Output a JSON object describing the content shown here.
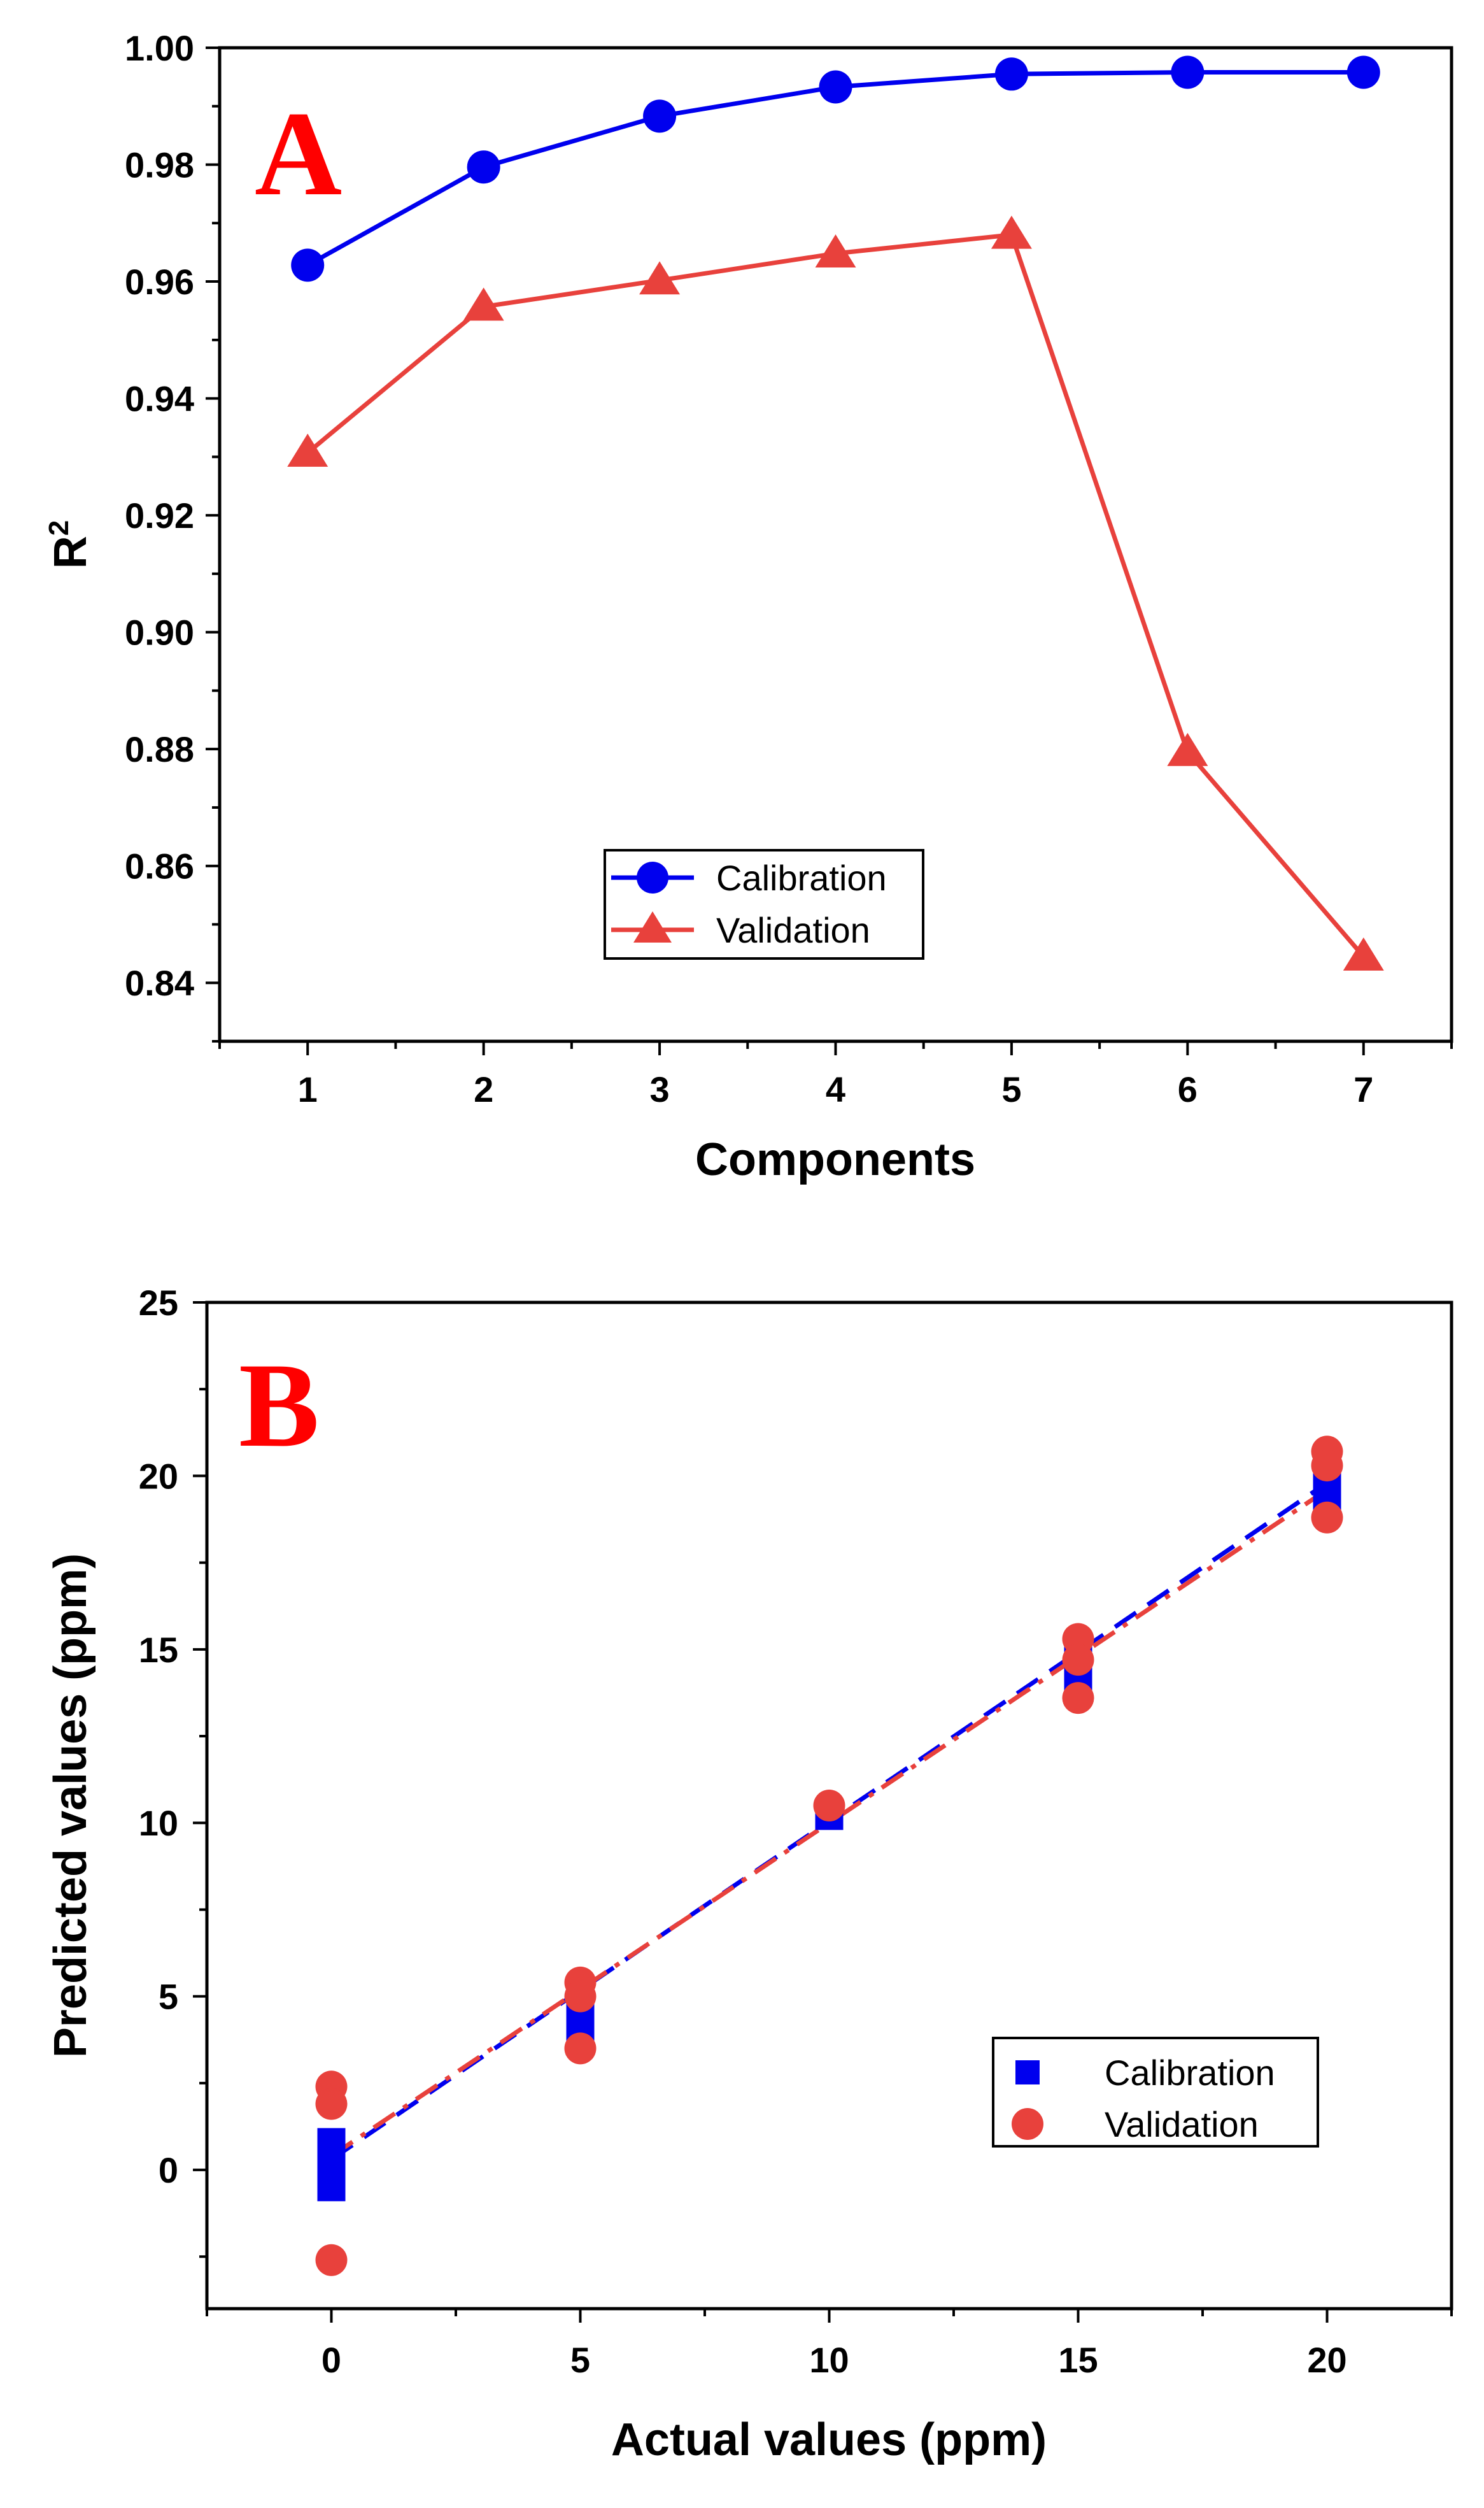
{
  "chart_data": [
    {
      "panel": "A",
      "type": "line",
      "title": "",
      "xlabel": "Components",
      "ylabel": "R",
      "ylabel_superscript": "2",
      "xlim": [
        0.5,
        7.5
      ],
      "ylim": [
        0.83,
        1.0
      ],
      "xticks": [
        "1",
        "2",
        "3",
        "4",
        "5",
        "6",
        "7"
      ],
      "yticks": [
        "0.84",
        "0.86",
        "0.88",
        "0.90",
        "0.92",
        "0.94",
        "0.96",
        "0.98",
        "1.00"
      ],
      "x": [
        1,
        2,
        3,
        4,
        5,
        6,
        7
      ],
      "series": [
        {
          "name": "Calibration",
          "color": "#0000ee",
          "marker": "circle",
          "values": [
            0.9628,
            0.9796,
            0.9883,
            0.9933,
            0.9955,
            0.9958,
            0.9958
          ]
        },
        {
          "name": "Validation",
          "color": "#e8413c",
          "marker": "triangle",
          "values": [
            0.9307,
            0.9557,
            0.9602,
            0.9648,
            0.968,
            0.8795,
            0.8445
          ]
        }
      ],
      "legend": "bottom-center",
      "grid": false
    },
    {
      "panel": "B",
      "type": "scatter",
      "title": "",
      "xlabel": "Actual values (ppm)",
      "ylabel": "Predicted values (ppm)",
      "xlim": [
        -2.5,
        22.5
      ],
      "ylim": [
        -4,
        25
      ],
      "xticks": [
        "0",
        "5",
        "10",
        "15",
        "20"
      ],
      "yticks": [
        "0",
        "5",
        "10",
        "15",
        "20",
        "25"
      ],
      "series": [
        {
          "name": "Calibration",
          "color": "#0000ee",
          "marker": "square",
          "points": [
            [
              0,
              -0.5
            ],
            [
              0,
              0
            ],
            [
              0,
              0.3
            ],
            [
              0,
              0.8
            ],
            [
              5,
              4.0
            ],
            [
              5,
              4.4
            ],
            [
              5,
              4.8
            ],
            [
              10,
              10.2
            ],
            [
              10,
              10.3
            ],
            [
              15,
              14.0
            ],
            [
              15,
              14.4
            ],
            [
              15,
              14.8
            ],
            [
              15,
              15.1
            ],
            [
              20,
              19.2
            ],
            [
              20,
              19.6
            ],
            [
              20,
              19.9
            ]
          ]
        },
        {
          "name": "Validation",
          "color": "#e8413c",
          "marker": "circle",
          "points": [
            [
              0,
              2.4
            ],
            [
              0,
              1.9
            ],
            [
              0,
              -2.6
            ],
            [
              5,
              5.4
            ],
            [
              5,
              5.0
            ],
            [
              5,
              3.5
            ],
            [
              10,
              10.5
            ],
            [
              15,
              15.3
            ],
            [
              15,
              14.7
            ],
            [
              15,
              13.6
            ],
            [
              20,
              20.7
            ],
            [
              20,
              20.3
            ],
            [
              20,
              18.8
            ]
          ]
        }
      ],
      "fit_lines": [
        {
          "name": "Calibration fit",
          "color": "#0000ee",
          "style": "dashed",
          "from": [
            0,
            0.3
          ],
          "to": [
            20,
            19.8
          ]
        },
        {
          "name": "Validation fit",
          "color": "#e8413c",
          "style": "dash-dot",
          "from": [
            0,
            0.4
          ],
          "to": [
            20,
            19.6
          ]
        }
      ],
      "legend": "bottom-right",
      "grid": false
    }
  ],
  "panel_labels": {
    "a": "A",
    "b": "B",
    "color": "#ff0000"
  }
}
